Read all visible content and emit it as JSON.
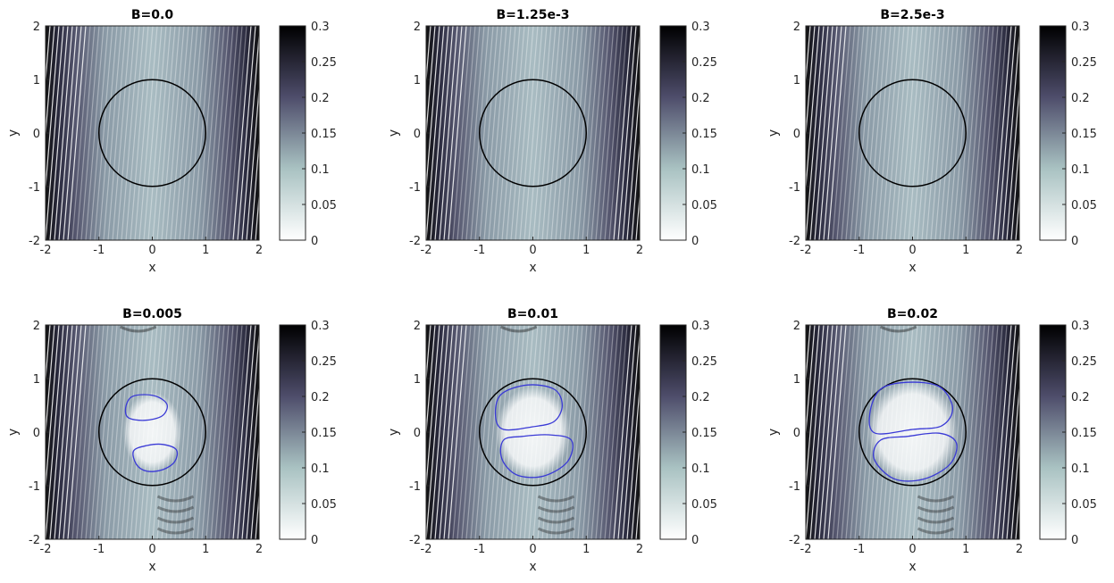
{
  "figure": {
    "colormap": [
      "#ffffff",
      "#a9c2c2",
      "#4e4d6b",
      "#000000"
    ]
  },
  "chart_data": [
    {
      "type": "heatmap",
      "title": "B=0.0",
      "xlabel": "x",
      "ylabel": "y",
      "xlim": [
        -2,
        2
      ],
      "ylim": [
        -2,
        2
      ],
      "xticks": [
        "-2",
        "-1",
        "0",
        "1",
        "2"
      ],
      "yticks": [
        "-2",
        "-1",
        "0",
        "1",
        "2"
      ],
      "colorbar": {
        "range": [
          0,
          0.3
        ],
        "ticks": [
          "0",
          "0.05",
          "0.1",
          "0.15",
          "0.2",
          "0.25",
          "0.3"
        ]
      },
      "circle": {
        "center": [
          0,
          0
        ],
        "radius": 1,
        "color": "#000000"
      },
      "contours": []
    },
    {
      "type": "heatmap",
      "title": "B=1.25e-3",
      "xlabel": "x",
      "ylabel": "y",
      "xlim": [
        -2,
        2
      ],
      "ylim": [
        -2,
        2
      ],
      "xticks": [
        "-2",
        "-1",
        "0",
        "1",
        "2"
      ],
      "yticks": [
        "-2",
        "-1",
        "0",
        "1",
        "2"
      ],
      "colorbar": {
        "range": [
          0,
          0.3
        ],
        "ticks": [
          "0",
          "0.05",
          "0.1",
          "0.15",
          "0.2",
          "0.25",
          "0.3"
        ]
      },
      "circle": {
        "center": [
          0,
          0
        ],
        "radius": 1,
        "color": "#000000"
      },
      "contours": []
    },
    {
      "type": "heatmap",
      "title": "B=2.5e-3",
      "xlabel": "x",
      "ylabel": "y",
      "xlim": [
        -2,
        2
      ],
      "ylim": [
        -2,
        2
      ],
      "xticks": [
        "-2",
        "-1",
        "0",
        "1",
        "2"
      ],
      "yticks": [
        "-2",
        "-1",
        "0",
        "1",
        "2"
      ],
      "colorbar": {
        "range": [
          0,
          0.3
        ],
        "ticks": [
          "0",
          "0.05",
          "0.1",
          "0.15",
          "0.2",
          "0.25",
          "0.3"
        ]
      },
      "circle": {
        "center": [
          0,
          0
        ],
        "radius": 1,
        "color": "#000000"
      },
      "contours": []
    },
    {
      "type": "heatmap",
      "title": "B=0.005",
      "xlabel": "x",
      "ylabel": "y",
      "xlim": [
        -2,
        2
      ],
      "ylim": [
        -2,
        2
      ],
      "xticks": [
        "-2",
        "-1",
        "0",
        "1",
        "2"
      ],
      "yticks": [
        "-2",
        "-1",
        "0",
        "1",
        "2"
      ],
      "colorbar": {
        "range": [
          0,
          0.3
        ],
        "ticks": [
          "0",
          "0.05",
          "0.1",
          "0.15",
          "0.2",
          "0.25",
          "0.3"
        ]
      },
      "circle": {
        "center": [
          0,
          0
        ],
        "radius": 1,
        "color": "#000000"
      },
      "contours": [
        {
          "color": "#3a3ad6",
          "points": [
            [
              -0.5,
              0.45
            ],
            [
              -0.4,
              0.65
            ],
            [
              -0.15,
              0.7
            ],
            [
              0.12,
              0.65
            ],
            [
              0.28,
              0.5
            ],
            [
              0.18,
              0.3
            ],
            [
              -0.15,
              0.22
            ],
            [
              -0.45,
              0.27
            ]
          ]
        },
        {
          "color": "#3a3ad6",
          "points": [
            [
              -0.35,
              -0.35
            ],
            [
              -0.1,
              -0.25
            ],
            [
              0.2,
              -0.23
            ],
            [
              0.45,
              -0.33
            ],
            [
              0.42,
              -0.55
            ],
            [
              0.2,
              -0.7
            ],
            [
              -0.1,
              -0.73
            ],
            [
              -0.3,
              -0.6
            ]
          ]
        }
      ]
    },
    {
      "type": "heatmap",
      "title": "B=0.01",
      "xlabel": "x",
      "ylabel": "y",
      "xlim": [
        -2,
        2
      ],
      "ylim": [
        -2,
        2
      ],
      "xticks": [
        "-2",
        "-1",
        "0",
        "1",
        "2"
      ],
      "yticks": [
        "-2",
        "-1",
        "0",
        "1",
        "2"
      ],
      "colorbar": {
        "range": [
          0,
          0.3
        ],
        "ticks": [
          "0",
          "0.05",
          "0.1",
          "0.15",
          "0.2",
          "0.25",
          "0.3"
        ]
      },
      "circle": {
        "center": [
          0,
          0
        ],
        "radius": 1,
        "color": "#000000"
      },
      "contours": [
        {
          "color": "#3a3ad6",
          "points": [
            [
              -0.7,
              0.3
            ],
            [
              -0.6,
              0.7
            ],
            [
              -0.1,
              0.88
            ],
            [
              0.4,
              0.8
            ],
            [
              0.55,
              0.5
            ],
            [
              0.4,
              0.2
            ],
            [
              0.0,
              0.1
            ],
            [
              -0.55,
              0.05
            ]
          ]
        },
        {
          "color": "#3a3ad6",
          "points": [
            [
              -0.55,
              -0.15
            ],
            [
              -0.2,
              -0.08
            ],
            [
              0.3,
              -0.05
            ],
            [
              0.72,
              -0.15
            ],
            [
              0.65,
              -0.55
            ],
            [
              0.2,
              -0.82
            ],
            [
              -0.3,
              -0.8
            ],
            [
              -0.58,
              -0.5
            ]
          ]
        }
      ]
    },
    {
      "type": "heatmap",
      "title": "B=0.02",
      "xlabel": "x",
      "ylabel": "y",
      "xlim": [
        -2,
        2
      ],
      "ylim": [
        -2,
        2
      ],
      "xticks": [
        "-2",
        "-1",
        "0",
        "1",
        "2"
      ],
      "yticks": [
        "-2",
        "-1",
        "0",
        "1",
        "2"
      ],
      "colorbar": {
        "range": [
          0,
          0.3
        ],
        "ticks": [
          "0",
          "0.05",
          "0.1",
          "0.15",
          "0.2",
          "0.25",
          "0.3"
        ]
      },
      "circle": {
        "center": [
          0,
          0
        ],
        "radius": 1,
        "color": "#000000"
      },
      "contours": [
        {
          "color": "#3a3ad6",
          "points": [
            [
              -0.8,
              0.35
            ],
            [
              -0.6,
              0.8
            ],
            [
              -0.1,
              0.93
            ],
            [
              0.5,
              0.85
            ],
            [
              0.75,
              0.45
            ],
            [
              0.55,
              0.12
            ],
            [
              0.0,
              0.05
            ],
            [
              -0.7,
              -0.02
            ]
          ]
        },
        {
          "color": "#3a3ad6",
          "points": [
            [
              -0.6,
              -0.15
            ],
            [
              -0.1,
              -0.08
            ],
            [
              0.5,
              -0.02
            ],
            [
              0.82,
              -0.2
            ],
            [
              0.7,
              -0.6
            ],
            [
              0.2,
              -0.88
            ],
            [
              -0.35,
              -0.87
            ],
            [
              -0.72,
              -0.5
            ]
          ]
        }
      ]
    }
  ]
}
